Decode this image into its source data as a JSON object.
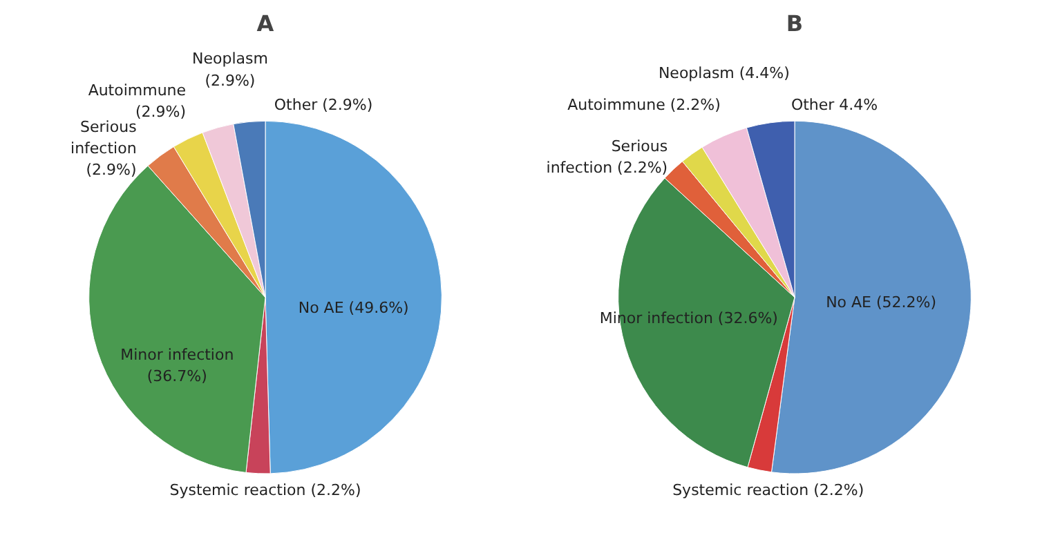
{
  "chart_data": [
    {
      "type": "pie",
      "title": "A",
      "categories": [
        "No AE",
        "Systemic reaction",
        "Minor infection",
        "Serious infection",
        "Autoimmune",
        "Neoplasm",
        "Other"
      ],
      "values": [
        49.6,
        2.2,
        36.7,
        2.9,
        2.9,
        2.9,
        2.9
      ],
      "value_labels": [
        "(49.6%)",
        "(2.2%)",
        "(36.7%)",
        "(2.9%)",
        "(2.9%)",
        "(2.9%)",
        "(2.9%)"
      ],
      "colors": [
        "#5aa0d8",
        "#c8435a",
        "#4a9a50",
        "#e07b4a",
        "#e8d44a",
        "#f0c8d8",
        "#4a7ab8"
      ],
      "legend": false
    },
    {
      "type": "pie",
      "title": "B",
      "categories": [
        "No AE",
        "Systemic reaction",
        "Minor infection",
        "Serious infection",
        "Autoimmune",
        "Neoplasm",
        "Other"
      ],
      "values": [
        52.2,
        2.2,
        32.6,
        2.2,
        2.2,
        4.4,
        4.4
      ],
      "value_labels": [
        "(52.2%)",
        "(2.2%)",
        "(32.6%)",
        "(2.2%)",
        "(2.2%)",
        "(4.4%)",
        "4.4%"
      ],
      "colors": [
        "#5f93c9",
        "#d83a3a",
        "#3d8a4c",
        "#e0603a",
        "#e0d84a",
        "#f0c0d8",
        "#3f5fae"
      ],
      "legend": false
    }
  ]
}
